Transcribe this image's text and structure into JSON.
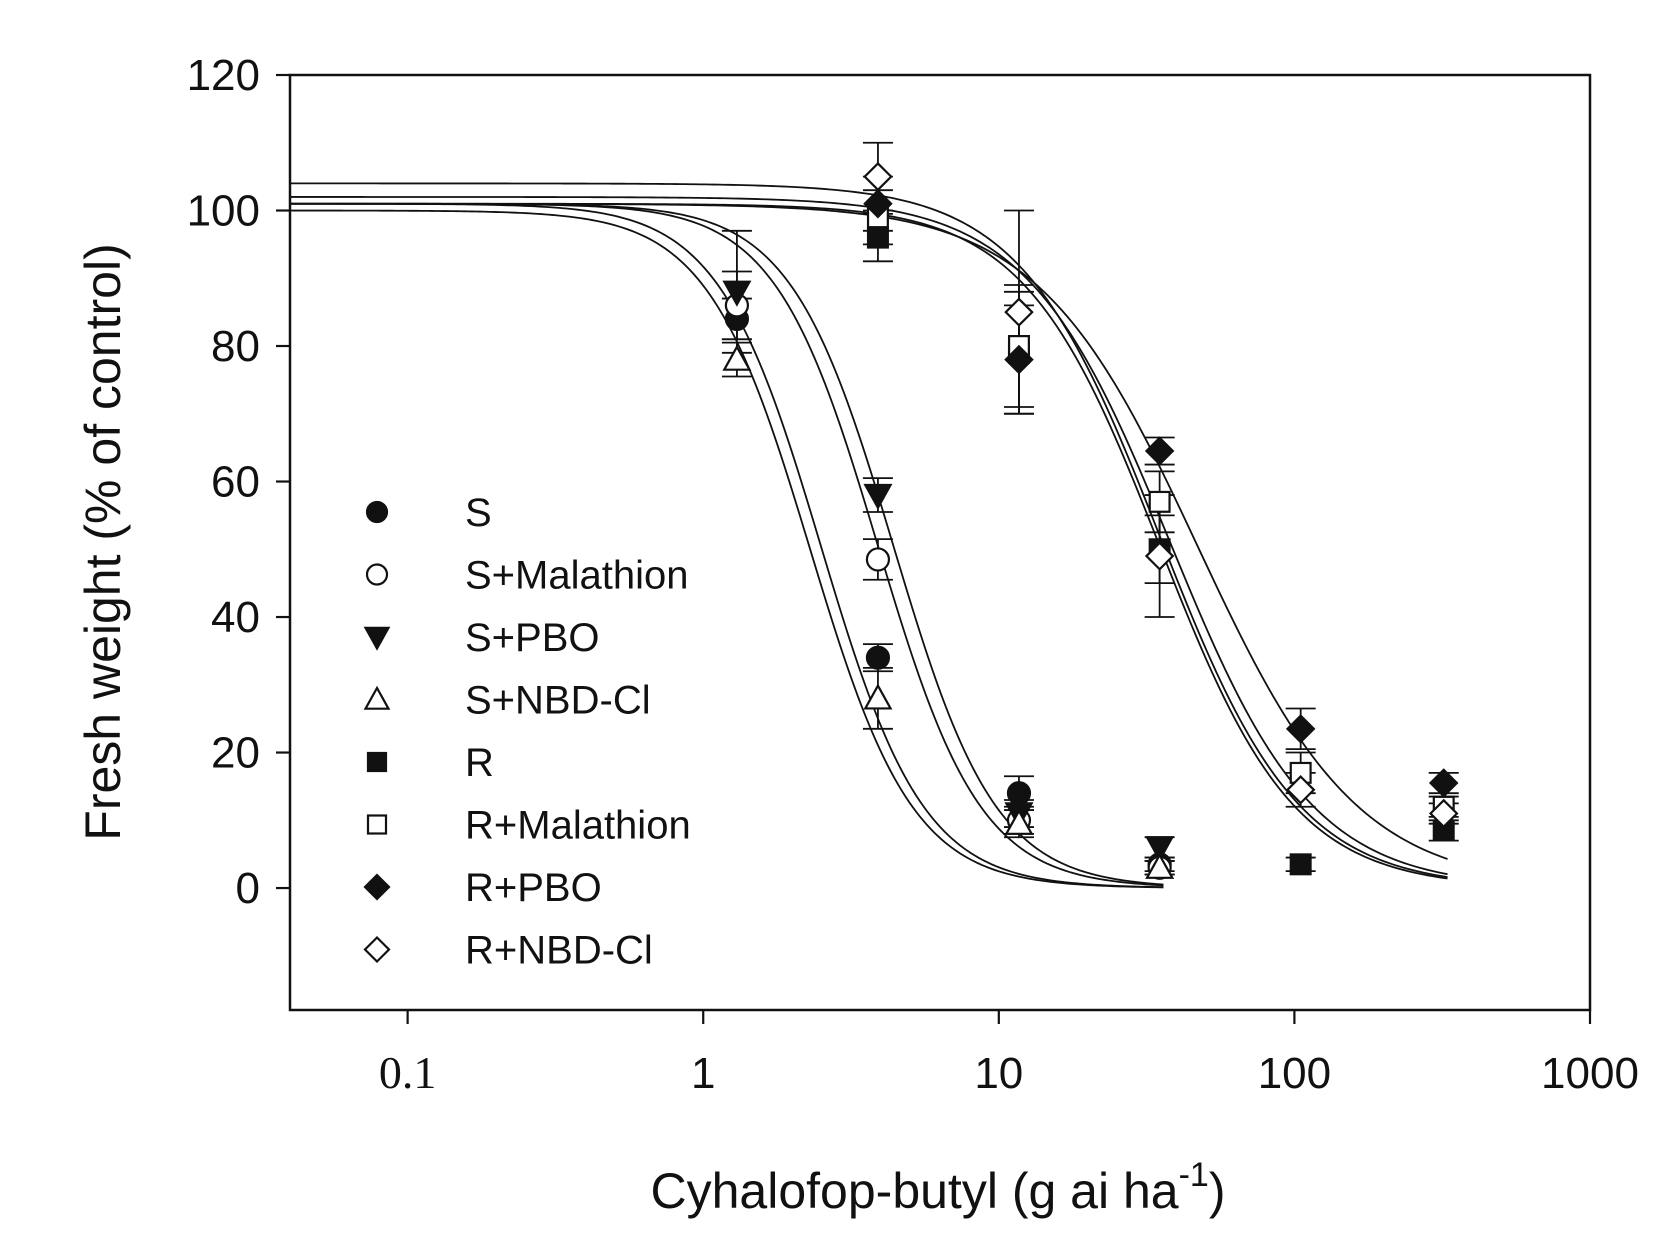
{
  "chart_data": {
    "type": "scatter",
    "xscale": "log",
    "xlim": [
      0.04,
      1000
    ],
    "ylim": [
      -18,
      120
    ],
    "xticks": [
      {
        "value": 0.1,
        "label": "0.1",
        "serif": true
      },
      {
        "value": 1,
        "label": "1"
      },
      {
        "value": 10,
        "label": "10"
      },
      {
        "value": 100,
        "label": "100"
      },
      {
        "value": 1000,
        "label": "1000"
      }
    ],
    "yticks": [
      0,
      20,
      40,
      60,
      80,
      100,
      120
    ],
    "xlabel": "Cyhalofop-butyl (g ai ha",
    "xlabel_superscript": "-1",
    "xlabel_suffix": ")",
    "ylabel": "Fresh weight (% of control)",
    "legend_position": "left-center",
    "series": [
      {
        "name": "S",
        "marker": "circle",
        "filled": true,
        "x": [
          1.3,
          3.9,
          11.7,
          35
        ],
        "y": [
          84,
          34,
          14,
          3.5
        ],
        "err": [
          3,
          2,
          2.5,
          1
        ],
        "fit": {
          "top": 101,
          "bottom": 0,
          "ed50": 2.5,
          "slope": 2.5
        }
      },
      {
        "name": "S+Malathion",
        "marker": "circle",
        "filled": false,
        "x": [
          1.3,
          3.9,
          11.7,
          35
        ],
        "y": [
          86,
          48.5,
          10,
          3
        ],
        "err": [
          5,
          3,
          2,
          1
        ],
        "fit": {
          "top": 101,
          "bottom": 0,
          "ed50": 3.9,
          "slope": 2.5
        }
      },
      {
        "name": "S+PBO",
        "marker": "triangle-down",
        "filled": true,
        "x": [
          1.3,
          3.9,
          11.7,
          35
        ],
        "y": [
          88,
          58,
          11,
          6
        ],
        "err": [
          9,
          2.5,
          2,
          1.5
        ],
        "fit": {
          "top": 101,
          "bottom": 0,
          "ed50": 4.4,
          "slope": 2.5
        }
      },
      {
        "name": "S+NBD-Cl",
        "marker": "triangle-up",
        "filled": false,
        "x": [
          1.3,
          3.9,
          11.7,
          35
        ],
        "y": [
          78,
          28,
          9.5,
          3
        ],
        "err": [
          2.5,
          4.5,
          2,
          1
        ],
        "fit": {
          "top": 100,
          "bottom": 0,
          "ed50": 2.3,
          "slope": 2.5
        }
      },
      {
        "name": "R",
        "marker": "square",
        "filled": true,
        "x": [
          3.9,
          11.7,
          35,
          105,
          320
        ],
        "y": [
          96,
          79,
          50,
          3.5,
          8.5
        ],
        "err": [
          3.5,
          9,
          5,
          1,
          1.5
        ],
        "fit": {
          "top": 101,
          "bottom": 0,
          "ed50": 35,
          "slope": 1.9
        }
      },
      {
        "name": "R+Malathion",
        "marker": "square",
        "filled": false,
        "x": [
          3.9,
          11.7,
          35,
          105,
          320
        ],
        "y": [
          99,
          80,
          57,
          17,
          12
        ],
        "err": [
          4,
          9,
          4.5,
          3,
          1.5
        ],
        "fit": {
          "top": 102,
          "bottom": 0,
          "ed50": 38,
          "slope": 1.8
        }
      },
      {
        "name": "R+PBO",
        "marker": "diamond",
        "filled": true,
        "x": [
          3.9,
          11.7,
          35,
          105,
          320
        ],
        "y": [
          101,
          78,
          64.5,
          23.5,
          15.5
        ],
        "err": [
          4,
          8,
          2,
          3,
          1.5
        ],
        "fit": {
          "top": 101,
          "bottom": 0,
          "ed50": 47,
          "slope": 1.6
        }
      },
      {
        "name": "R+NBD-Cl",
        "marker": "diamond",
        "filled": false,
        "x": [
          3.9,
          11.7,
          35,
          105,
          320
        ],
        "y": [
          105,
          85,
          49,
          14.5,
          11
        ],
        "err": [
          5,
          15,
          9,
          2.5,
          1.5
        ],
        "fit": {
          "top": 104,
          "bottom": 0,
          "ed50": 35,
          "slope": 1.85
        }
      }
    ]
  }
}
